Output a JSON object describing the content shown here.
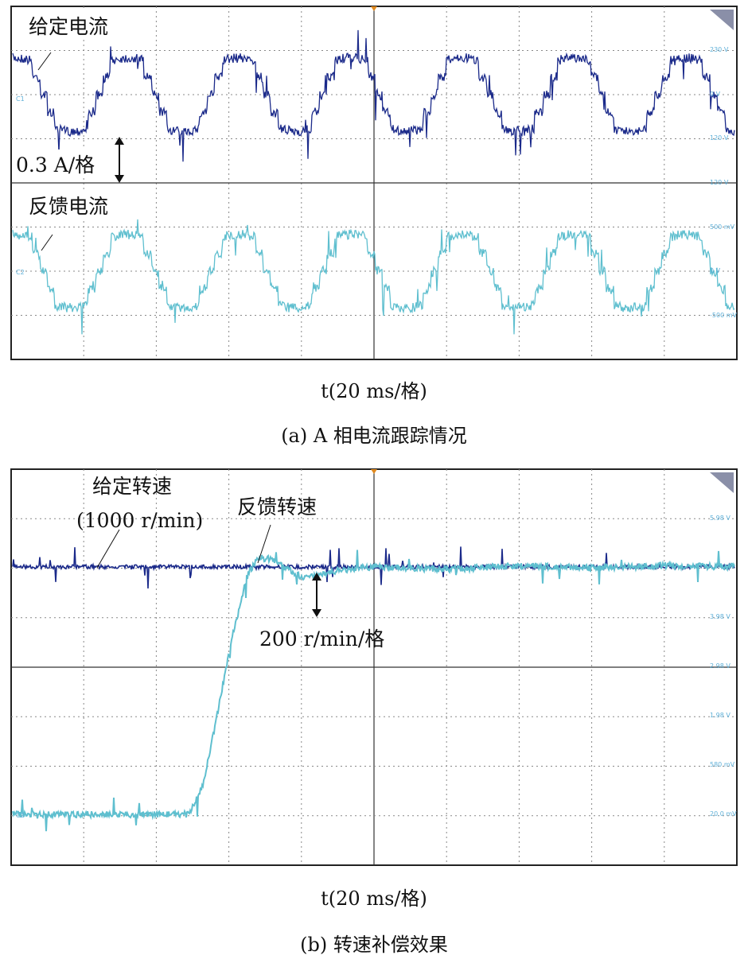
{
  "chart_data": [
    {
      "type": "line",
      "title": "(a) A 相电流跟踪情况",
      "xlabel": "t(20 ms/格)",
      "x_unit": "ms",
      "xlim": [
        0,
        200
      ],
      "x_per_div": 20,
      "grid": true,
      "scale_annotation": "0.3 A/格",
      "right_labels": [
        "230 V",
        "0 V",
        "120 V",
        "120 V",
        "500 mV",
        "0 V",
        "-500 mV"
      ],
      "series": [
        {
          "name": "给定电流",
          "color": "#1b2a8a",
          "unit": "A",
          "shape": "stepped-sine",
          "amplitude": 0.3,
          "period_ms": 30.8,
          "peak_time_ms": 32,
          "channel": "C1"
        },
        {
          "name": "反馈电流",
          "color": "#5fbfcf",
          "unit": "A",
          "shape": "stepped-sine",
          "amplitude": 0.3,
          "period_ms": 30.8,
          "peak_time_ms": 32,
          "channel": "C2"
        }
      ]
    },
    {
      "type": "line",
      "title": "(b) 转速补偿效果",
      "xlabel": "t(20 ms/格)",
      "x_unit": "ms",
      "xlim": [
        0,
        200
      ],
      "x_per_div": 20,
      "grid": true,
      "scale_annotation": "200 r/min/格",
      "right_labels": [
        "5.98 V",
        "3.98 V",
        "2.98 V",
        "1.98 V",
        "580 mV",
        "20.0 mV"
      ],
      "series": [
        {
          "name": "给定转速",
          "label2": "(1000 r/min)",
          "color": "#1b2a8a",
          "unit": "r/min",
          "x": [
            0,
            200
          ],
          "y": [
            1000,
            1000
          ]
        },
        {
          "name": "反馈转速",
          "color": "#5fbfcf",
          "unit": "r/min",
          "x": [
            0,
            49,
            53,
            57,
            61,
            65,
            68,
            72,
            76,
            80,
            85,
            90,
            100,
            120,
            140,
            160,
            180,
            200
          ],
          "y": [
            0,
            0,
            120,
            420,
            720,
            960,
            1040,
            1030,
            990,
            960,
            965,
            985,
            1000,
            990,
            1005,
            995,
            1005,
            1000
          ]
        }
      ]
    }
  ]
}
